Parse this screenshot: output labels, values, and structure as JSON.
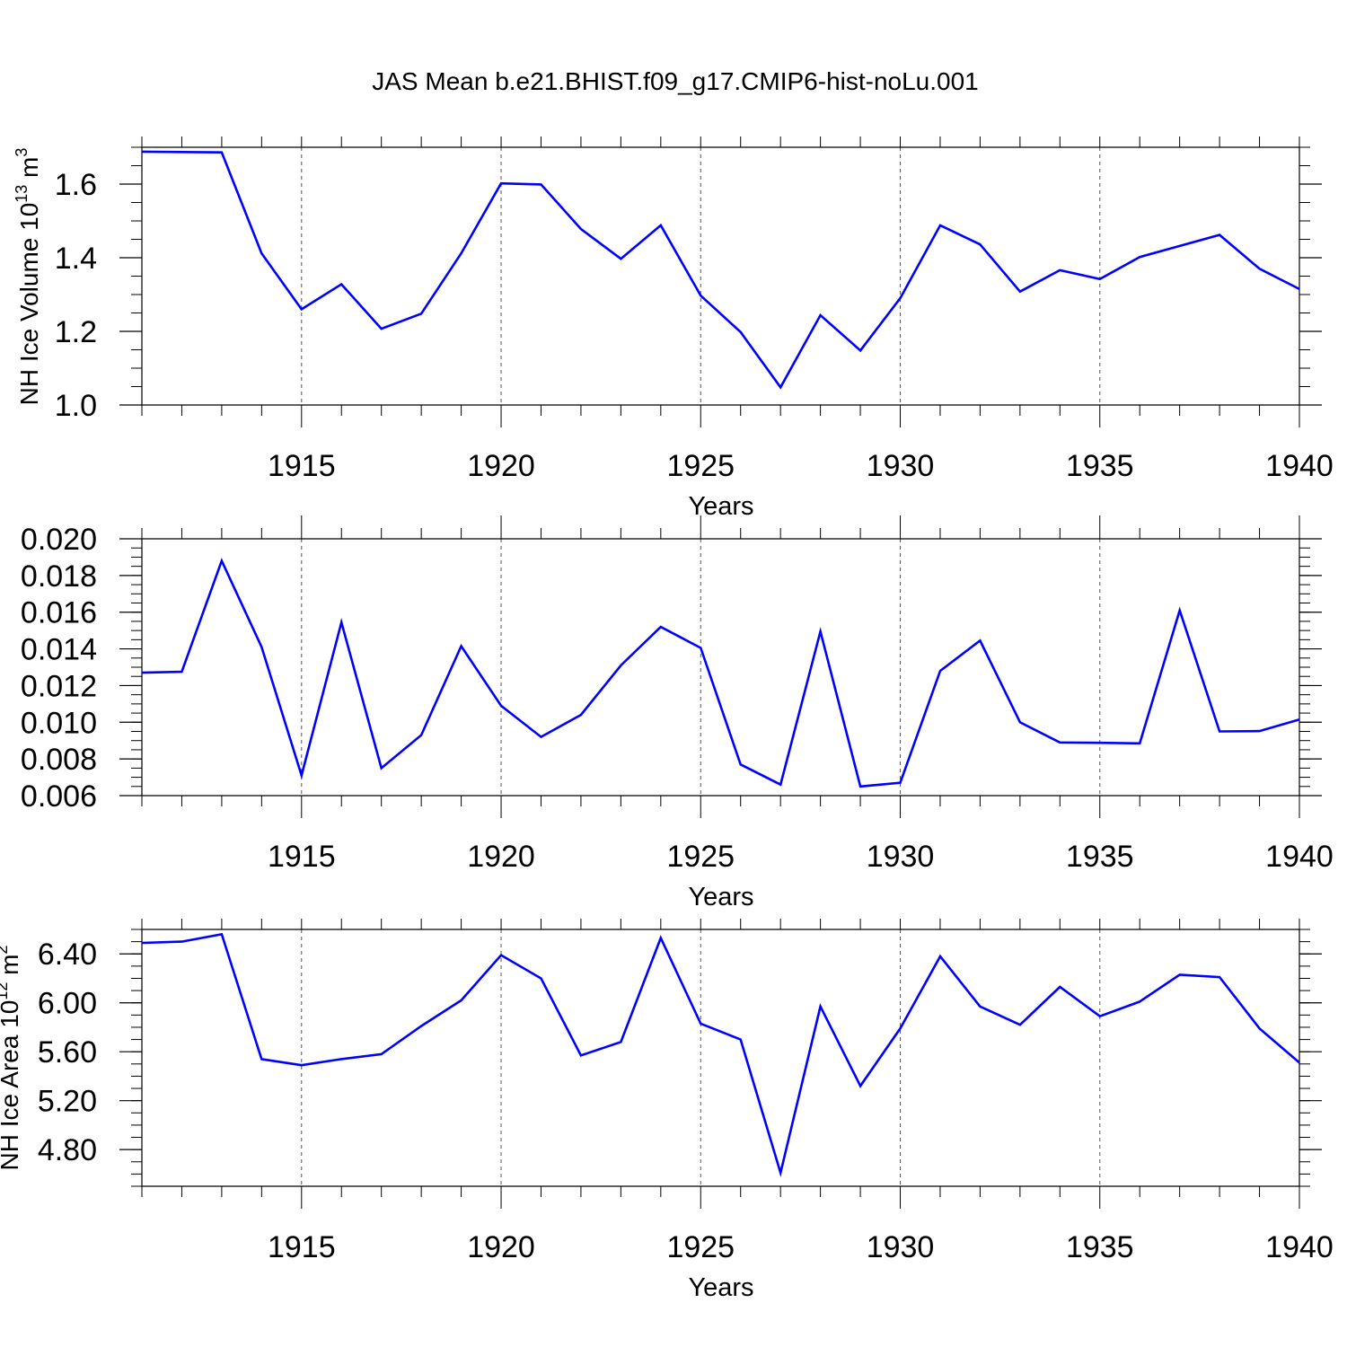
{
  "title": "JAS Mean b.e21.BHIST.f09_g17.CMIP6-hist-noLu.001",
  "colors": {
    "line": "#0000ff",
    "axis": "#000000",
    "grid": "#555555"
  },
  "chart_data": [
    {
      "type": "line",
      "title": "JAS Mean b.e21.BHIST.f09_g17.CMIP6-hist-noLu.001",
      "xlabel": "Years",
      "ylabel_main": "NH Ice Volume 10",
      "ylabel_sup": "13",
      "ylabel_unit": " m",
      "ylabel_unit_sup": "3",
      "xlim": [
        1911,
        1940
      ],
      "ylim": [
        1.0,
        1.7
      ],
      "yticks": [
        1.0,
        1.2,
        1.4,
        1.6
      ],
      "ytick_labels": [
        "1.0",
        "1.2",
        "1.4",
        "1.6"
      ],
      "yminor": 0.05,
      "xticks": [
        1915,
        1920,
        1925,
        1930,
        1935,
        1940
      ],
      "xtick_labels": [
        "1915",
        "1920",
        "1925",
        "1930",
        "1935",
        "1940"
      ],
      "grid": "vertical dashed at major x ticks",
      "x": [
        1911,
        1912,
        1913,
        1914,
        1915,
        1916,
        1917,
        1918,
        1919,
        1920,
        1921,
        1922,
        1923,
        1924,
        1925,
        1926,
        1927,
        1928,
        1929,
        1930,
        1931,
        1932,
        1933,
        1934,
        1935,
        1936,
        1937,
        1938,
        1939,
        1940
      ],
      "y": [
        1.688,
        1.687,
        1.686,
        1.412,
        1.26,
        1.328,
        1.207,
        1.248,
        1.412,
        1.602,
        1.599,
        1.478,
        1.397,
        1.488,
        1.297,
        1.198,
        1.048,
        1.244,
        1.148,
        1.29,
        1.488,
        1.436,
        1.308,
        1.366,
        1.342,
        1.402,
        1.432,
        1.462,
        1.37,
        1.315
      ]
    },
    {
      "type": "line",
      "xlabel": "Years",
      "ylabel_main": "",
      "xlim": [
        1911,
        1940
      ],
      "ylim": [
        0.006,
        0.02
      ],
      "yticks": [
        0.006,
        0.008,
        0.01,
        0.012,
        0.014,
        0.016,
        0.018,
        0.02
      ],
      "ytick_labels": [
        "0.006",
        "0.008",
        "0.010",
        "0.012",
        "0.014",
        "0.016",
        "0.018",
        "0.020"
      ],
      "yminor": 0.0005,
      "xticks": [
        1915,
        1920,
        1925,
        1930,
        1935,
        1940
      ],
      "xtick_labels": [
        "1915",
        "1920",
        "1925",
        "1930",
        "1935",
        "1940"
      ],
      "grid": "vertical dashed at major x ticks",
      "x": [
        1911,
        1912,
        1913,
        1914,
        1915,
        1916,
        1917,
        1918,
        1919,
        1920,
        1921,
        1922,
        1923,
        1924,
        1925,
        1926,
        1927,
        1928,
        1929,
        1930,
        1931,
        1932,
        1933,
        1934,
        1935,
        1936,
        1937,
        1938,
        1939,
        1940
      ],
      "y": [
        0.0127,
        0.01275,
        0.0188,
        0.0141,
        0.0071,
        0.01545,
        0.0075,
        0.0093,
        0.01415,
        0.0109,
        0.0092,
        0.0104,
        0.0131,
        0.0152,
        0.01405,
        0.0077,
        0.0066,
        0.01495,
        0.0065,
        0.0067,
        0.0128,
        0.01445,
        0.01,
        0.0089,
        0.00888,
        0.00885,
        0.0161,
        0.0095,
        0.00952,
        0.01015
      ]
    },
    {
      "type": "line",
      "xlabel": "Years",
      "ylabel_main": "NH Ice Area 10",
      "ylabel_sup": "12",
      "ylabel_unit": " m",
      "ylabel_unit_sup": "2",
      "xlim": [
        1911,
        1940
      ],
      "ylim": [
        4.5,
        6.6
      ],
      "yticks": [
        4.8,
        5.2,
        5.6,
        6.0,
        6.4
      ],
      "ytick_labels": [
        "4.80",
        "5.20",
        "5.60",
        "6.00",
        "6.40"
      ],
      "yminor": 0.1,
      "xticks": [
        1915,
        1920,
        1925,
        1930,
        1935,
        1940
      ],
      "xtick_labels": [
        "1915",
        "1920",
        "1925",
        "1930",
        "1935",
        "1940"
      ],
      "grid": "vertical dashed at major x ticks",
      "x": [
        1911,
        1912,
        1913,
        1914,
        1915,
        1916,
        1917,
        1918,
        1919,
        1920,
        1921,
        1922,
        1923,
        1924,
        1925,
        1926,
        1927,
        1928,
        1929,
        1930,
        1931,
        1932,
        1933,
        1934,
        1935,
        1936,
        1937,
        1938,
        1939,
        1940
      ],
      "y": [
        6.49,
        6.5,
        6.56,
        5.54,
        5.49,
        5.54,
        5.58,
        5.81,
        6.02,
        6.39,
        6.2,
        5.57,
        5.68,
        6.53,
        5.83,
        5.7,
        4.61,
        5.97,
        5.32,
        5.79,
        6.38,
        5.97,
        5.82,
        6.13,
        5.89,
        6.01,
        6.23,
        6.21,
        5.79,
        5.51
      ]
    }
  ]
}
